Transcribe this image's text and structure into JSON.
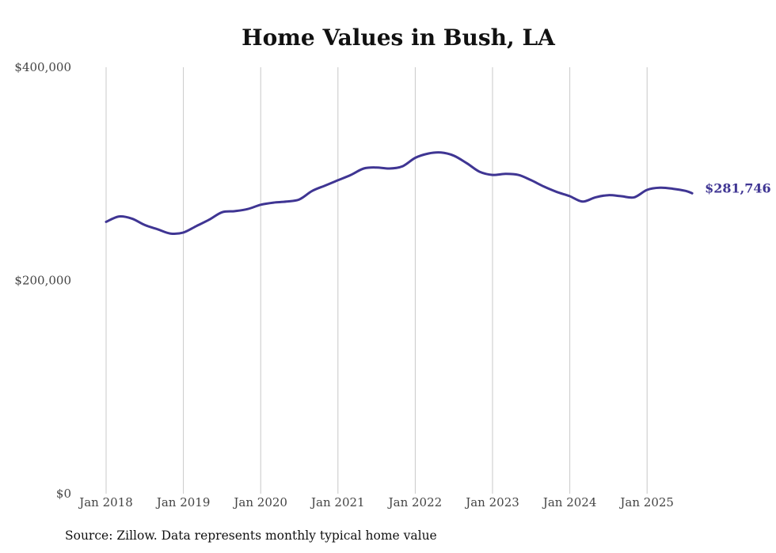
{
  "chart_data": {
    "type": "line",
    "title": "Home Values in Bush, LA",
    "xlabel": "",
    "ylabel": "",
    "ylim": [
      0,
      400000
    ],
    "y_ticks": [
      "$400,000",
      "$200,000",
      "$0"
    ],
    "y_tick_values": [
      400000,
      200000,
      0
    ],
    "x_ticks": [
      "Jan 2018",
      "Jan 2019",
      "Jan 2020",
      "Jan 2021",
      "Jan 2022",
      "Jan 2023",
      "Jan 2024",
      "Jan 2025"
    ],
    "grid": "vertical",
    "legend": "none",
    "end_label": "$281,746",
    "series": [
      {
        "color": "#3f3593",
        "x": [
          "2018-01",
          "2018-03",
          "2018-05",
          "2018-07",
          "2018-09",
          "2018-11",
          "2019-01",
          "2019-03",
          "2019-05",
          "2019-07",
          "2019-09",
          "2019-11",
          "2020-01",
          "2020-03",
          "2020-05",
          "2020-07",
          "2020-09",
          "2020-11",
          "2021-01",
          "2021-03",
          "2021-05",
          "2021-07",
          "2021-09",
          "2021-11",
          "2022-01",
          "2022-03",
          "2022-05",
          "2022-07",
          "2022-09",
          "2022-11",
          "2023-01",
          "2023-03",
          "2023-05",
          "2023-07",
          "2023-09",
          "2023-11",
          "2024-01",
          "2024-03",
          "2024-05",
          "2024-07",
          "2024-09",
          "2024-11",
          "2025-01",
          "2025-03",
          "2025-05",
          "2025-07",
          "2025-08"
        ],
        "values": [
          255000,
          260000,
          258000,
          252000,
          248000,
          244000,
          245000,
          251000,
          257000,
          264000,
          265000,
          267000,
          271000,
          273000,
          274000,
          276000,
          284000,
          289000,
          294000,
          299000,
          305000,
          306000,
          305000,
          307000,
          315000,
          319000,
          320000,
          317000,
          310000,
          302000,
          299000,
          300000,
          299000,
          294000,
          288000,
          283000,
          279000,
          274000,
          278000,
          280000,
          279000,
          278000,
          285000,
          287000,
          286000,
          284000,
          281746
        ]
      }
    ],
    "source": "Source: Zillow. Data represents monthly typical home value"
  }
}
